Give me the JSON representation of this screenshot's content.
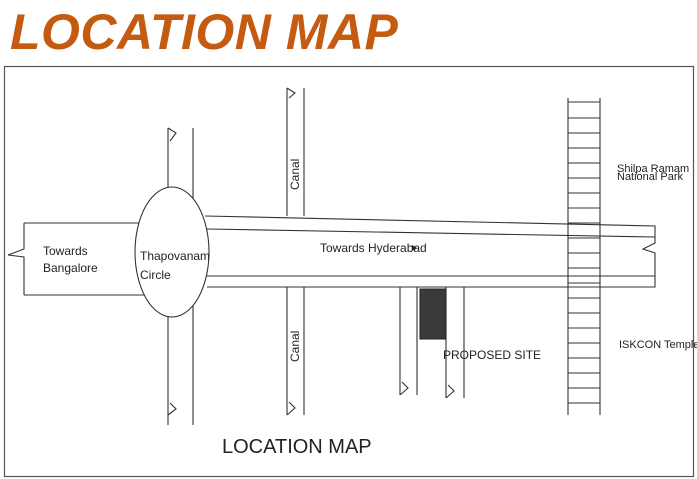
{
  "title": "LOCATION MAP",
  "labels": {
    "towards_bangalore_1": "Towards",
    "towards_bangalore_2": "Bangalore",
    "circle_1": "Thapovanam",
    "circle_2": "Circle",
    "canal_top": "Canal",
    "canal_bottom": "Canal",
    "towards_hyderabad": "Towards Hyderabad",
    "shilpa_ramam": "Shilpa Ramam",
    "national_park": "National Park",
    "proposed_site": "PROPOSED SITE",
    "iskcon_temple": "ISKCON Temple",
    "caption": "LOCATION MAP"
  },
  "colors": {
    "title": "#c55a11",
    "stroke": "#333333",
    "site_fill": "#3a3a3a"
  }
}
